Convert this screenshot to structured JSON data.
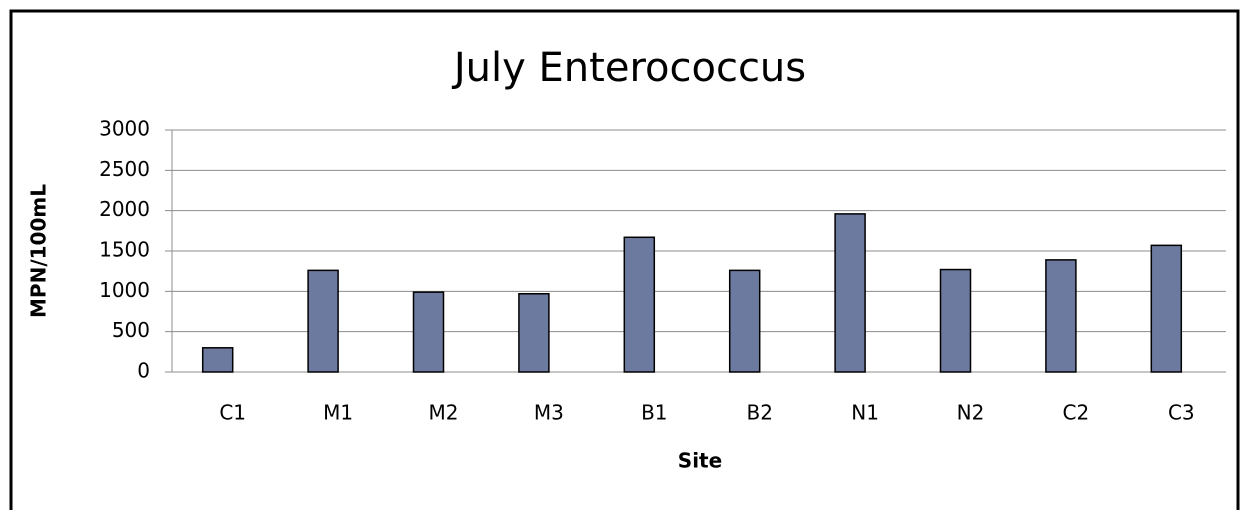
{
  "chart_data": {
    "type": "bar",
    "title": "July Enterococcus",
    "x_label": "Site",
    "y_label": "MPN/100mL",
    "categories": [
      "C1",
      "M1",
      "M2",
      "M3",
      "B1",
      "B2",
      "N1",
      "N2",
      "C2",
      "C3"
    ],
    "values": [
      300,
      1260,
      990,
      970,
      1670,
      1260,
      1960,
      1270,
      1390,
      1570
    ],
    "color": "#6d7a9f",
    "ylim": [
      0,
      3000
    ],
    "yticks": [
      0,
      500,
      1000,
      1500,
      2000,
      2500,
      3000
    ],
    "grid": true
  }
}
